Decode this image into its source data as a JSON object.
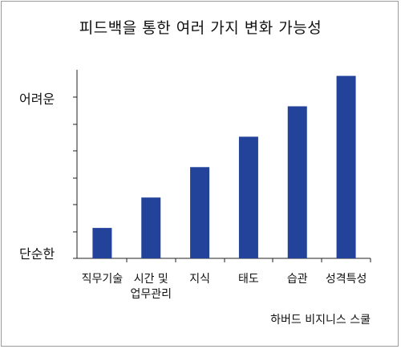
{
  "chart_data": {
    "type": "bar",
    "title": "피드백을 통한 여러 가지 변화 가능성",
    "categories": [
      "직무기술",
      "시간 및\n업무관리",
      "지식",
      "태도",
      "습관",
      "성격특성"
    ],
    "values": [
      1,
      2,
      3,
      4,
      5,
      6
    ],
    "ylim": [
      0,
      6.2
    ],
    "ytick_count": 7,
    "y_high_label": "어려운",
    "y_low_label": "단순한",
    "bar_color": "#23439a",
    "source": "하버드 비지니스 스쿨"
  }
}
